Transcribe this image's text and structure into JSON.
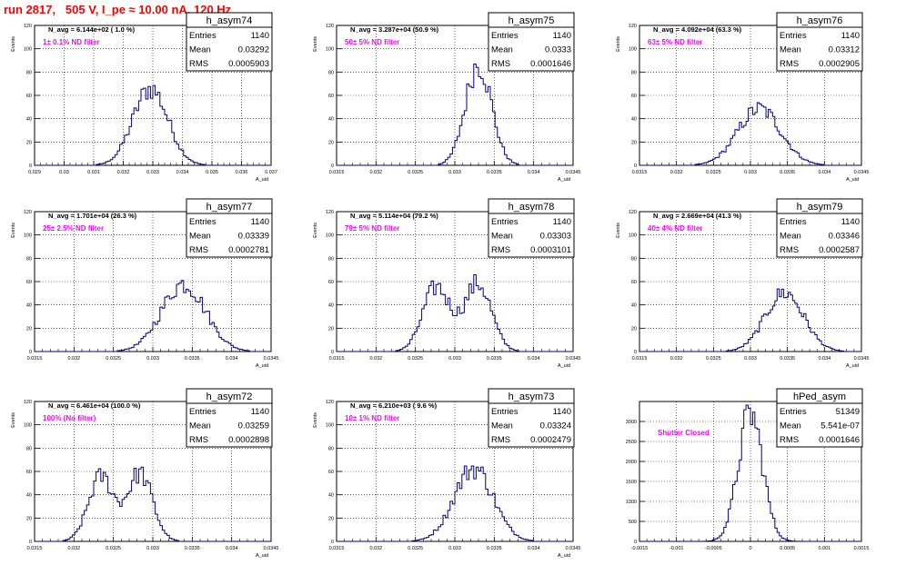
{
  "run_title": "run 2817,   505 V, I_pe ≈ 10.00 nA, 120 Hz",
  "colors": {
    "title": "#ff0000",
    "histogram": "#000080",
    "annotation": "#ff00ff",
    "grid": "#000000"
  },
  "chart_data": [
    {
      "type": "histogram",
      "name": "h_asym74",
      "stats": [
        [
          "Entries",
          "1140"
        ],
        [
          "Mean",
          "0.03292"
        ],
        [
          "RMS",
          "0.0005903"
        ]
      ],
      "navg": "N_avg = 6.144e+02 ( 1.0 %)",
      "filter": "1± 0.1% ND filter",
      "ylabel": "Events",
      "xlabel": "A_uid",
      "xlim": [
        0.029,
        0.037
      ],
      "ylim": [
        0,
        120
      ],
      "xticks": [
        "0.029",
        "0.03",
        "0.031",
        "0.032",
        "0.033",
        "0.034",
        "0.035",
        "0.036",
        "0.037"
      ],
      "yticks": [
        "0",
        "20",
        "40",
        "60",
        "80",
        "100",
        "120"
      ],
      "grid": true,
      "distribution": {
        "mean": 0.03292,
        "rms": 0.0005903,
        "peak": 68,
        "shape": "single"
      }
    },
    {
      "type": "histogram",
      "name": "h_asym75",
      "stats": [
        [
          "Entries",
          "1140"
        ],
        [
          "Mean",
          "0.0333"
        ],
        [
          "RMS",
          "0.0001646"
        ]
      ],
      "navg": "N_avg = 3.287e+04 (50.9 %)",
      "filter": "50± 5% ND filter",
      "ylabel": "Events",
      "xlabel": "A_uid",
      "xlim": [
        0.0315,
        0.0345
      ],
      "ylim": [
        0,
        120
      ],
      "xticks": [
        "0.0315",
        "0.032",
        "0.0325",
        "0.033",
        "0.0335",
        "0.034",
        "0.0345"
      ],
      "yticks": [
        "0",
        "20",
        "40",
        "60",
        "80",
        "100",
        "120"
      ],
      "grid": true,
      "distribution": {
        "mean": 0.0333,
        "rms": 0.0001646,
        "peak": 90,
        "shape": "single"
      }
    },
    {
      "type": "histogram",
      "name": "h_asym76",
      "stats": [
        [
          "Entries",
          "1140"
        ],
        [
          "Mean",
          "0.03312"
        ],
        [
          "RMS",
          "0.0002905"
        ]
      ],
      "navg": "N_avg = 4.092e+04 (63.3 %)",
      "filter": "63± 5% ND filter",
      "ylabel": "Events",
      "xlabel": "A_uid",
      "xlim": [
        0.0315,
        0.0345
      ],
      "ylim": [
        0,
        120
      ],
      "xticks": [
        "0.0315",
        "0.032",
        "0.0325",
        "0.033",
        "0.0335",
        "0.034",
        "0.0345"
      ],
      "yticks": [
        "0",
        "20",
        "40",
        "60",
        "80",
        "100",
        "120"
      ],
      "grid": true,
      "distribution": {
        "mean": 0.03312,
        "rms": 0.0002905,
        "peak": 50,
        "shape": "single"
      }
    },
    {
      "type": "histogram",
      "name": "h_asym77",
      "stats": [
        [
          "Entries",
          "1140"
        ],
        [
          "Mean",
          "0.03339"
        ],
        [
          "RMS",
          "0.0002781"
        ]
      ],
      "navg": "N_avg = 1.701e+04 (26.3 %)",
      "filter": "25± 2.5% ND filter",
      "ylabel": "Events",
      "xlabel": "A_uid",
      "xlim": [
        0.0315,
        0.0345
      ],
      "ylim": [
        0,
        120
      ],
      "xticks": [
        "0.0315",
        "0.032",
        "0.0325",
        "0.033",
        "0.0335",
        "0.034",
        "0.0345"
      ],
      "yticks": [
        "0",
        "20",
        "40",
        "60",
        "80",
        "100",
        "120"
      ],
      "grid": true,
      "distribution": {
        "mean": 0.03339,
        "rms": 0.0002781,
        "peak": 60,
        "shape": "single"
      }
    },
    {
      "type": "histogram",
      "name": "h_asym78",
      "stats": [
        [
          "Entries",
          "1140"
        ],
        [
          "Mean",
          "0.03303"
        ],
        [
          "RMS",
          "0.0003101"
        ]
      ],
      "navg": "N_avg = 5.114e+04 (79.2 %)",
      "filter": "79± 5% ND filter",
      "ylabel": "Events",
      "xlabel": "A_uid",
      "xlim": [
        0.0315,
        0.0345
      ],
      "ylim": [
        0,
        120
      ],
      "xticks": [
        "0.0315",
        "0.032",
        "0.0325",
        "0.033",
        "0.0335",
        "0.034",
        "0.0345"
      ],
      "yticks": [
        "0",
        "20",
        "40",
        "60",
        "80",
        "100",
        "120"
      ],
      "grid": true,
      "distribution": {
        "mean": 0.03303,
        "rms": 0.0003101,
        "peak": 60,
        "shape": "double"
      }
    },
    {
      "type": "histogram",
      "name": "h_asym79",
      "stats": [
        [
          "Entries",
          "1140"
        ],
        [
          "Mean",
          "0.03346"
        ],
        [
          "RMS",
          "0.0002587"
        ]
      ],
      "navg": "N_avg = 2.669e+04 (41.3 %)",
      "filter": "40± 4% ND filter",
      "ylabel": "Events",
      "xlabel": "A_uid",
      "xlim": [
        0.0315,
        0.0345
      ],
      "ylim": [
        0,
        120
      ],
      "xticks": [
        "0.0315",
        "0.032",
        "0.0325",
        "0.033",
        "0.0335",
        "0.034",
        "0.0345"
      ],
      "yticks": [
        "0",
        "20",
        "40",
        "60",
        "80",
        "100",
        "120"
      ],
      "grid": true,
      "distribution": {
        "mean": 0.03346,
        "rms": 0.0002587,
        "peak": 52,
        "shape": "single"
      }
    },
    {
      "type": "histogram",
      "name": "h_asym72",
      "stats": [
        [
          "Entries",
          "1140"
        ],
        [
          "Mean",
          "0.03259"
        ],
        [
          "RMS",
          "0.0002898"
        ]
      ],
      "navg": "N_avg = 6.461e+04 (100.0 %)",
      "filter": "100% (No filter)",
      "ylabel": "Events",
      "xlabel": "A_uid",
      "xlim": [
        0.0315,
        0.0345
      ],
      "ylim": [
        0,
        120
      ],
      "xticks": [
        "0.0315",
        "0.032",
        "0.0325",
        "0.033",
        "0.0335",
        "0.034",
        "0.0345"
      ],
      "yticks": [
        "0",
        "20",
        "40",
        "60",
        "80",
        "100",
        "120"
      ],
      "grid": true,
      "distribution": {
        "mean": 0.03259,
        "rms": 0.0002898,
        "peak": 60,
        "shape": "double"
      }
    },
    {
      "type": "histogram",
      "name": "h_asym73",
      "stats": [
        [
          "Entries",
          "1140"
        ],
        [
          "Mean",
          "0.03324"
        ],
        [
          "RMS",
          "0.0002479"
        ]
      ],
      "navg": "N_avg = 6.210e+03 ( 9.6 %)",
      "filter": "10± 1% ND filter",
      "ylabel": "Events",
      "xlabel": "A_uid",
      "xlim": [
        0.0315,
        0.0345
      ],
      "ylim": [
        0,
        120
      ],
      "xticks": [
        "0.0315",
        "0.032",
        "0.0325",
        "0.033",
        "0.0335",
        "0.034",
        "0.0345"
      ],
      "yticks": [
        "0",
        "20",
        "40",
        "60",
        "80",
        "100",
        "120"
      ],
      "grid": true,
      "distribution": {
        "mean": 0.03324,
        "rms": 0.0002479,
        "peak": 65,
        "shape": "single"
      }
    },
    {
      "type": "histogram",
      "name": "hPed_asym",
      "stats": [
        [
          "Entries",
          "51349"
        ],
        [
          "Mean",
          "5.541e-07"
        ],
        [
          "RMS",
          "0.0001646"
        ]
      ],
      "navg": "",
      "filter": "Shutter Closed",
      "ylabel": "",
      "xlabel": "",
      "xlim": [
        -0.0015,
        0.0015
      ],
      "ylim": [
        0,
        3500
      ],
      "xticks": [
        "-0.0015",
        "-0.001",
        "-0.0005",
        "0",
        "0.0005",
        "0.001",
        "0.0015"
      ],
      "yticks": [
        "0",
        "500",
        "1000",
        "1500",
        "2000",
        "2500",
        "3000"
      ],
      "grid": true,
      "distribution": {
        "mean": 0.0,
        "rms": 0.0001646,
        "peak": 3300,
        "shape": "single"
      }
    }
  ]
}
